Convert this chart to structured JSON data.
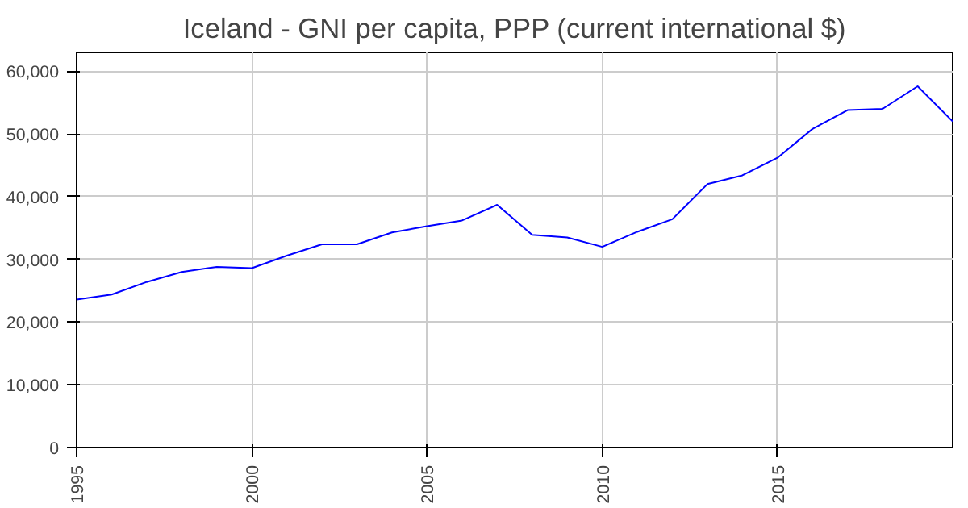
{
  "chart_data": {
    "type": "line",
    "title": "Iceland - GNI per capita, PPP (current international $)",
    "x": [
      1995,
      1996,
      1997,
      1998,
      1999,
      2000,
      2001,
      2002,
      2003,
      2004,
      2005,
      2006,
      2007,
      2008,
      2009,
      2010,
      2011,
      2012,
      2013,
      2014,
      2015,
      2016,
      2017,
      2018,
      2019,
      2020
    ],
    "series": [
      {
        "color": "#0000ff",
        "values": [
          23600,
          24400,
          26400,
          28000,
          28800,
          28600,
          30600,
          32400,
          32400,
          34300,
          35300,
          36200,
          38700,
          33900,
          33500,
          32000,
          34400,
          36400,
          42000,
          43400,
          46200,
          50800,
          53800,
          54000,
          57600,
          52000
        ]
      }
    ],
    "xlim": [
      1995,
      2020
    ],
    "xticks": [
      1995,
      2000,
      2005,
      2010,
      2015
    ],
    "ylim": [
      0,
      63000
    ],
    "yticks": [
      0,
      {
        "value": 10000,
        "label": "10,000"
      },
      {
        "value": 20000,
        "label": "20,000"
      },
      {
        "value": 30000,
        "label": "30,000"
      },
      {
        "value": 40000,
        "label": "40,000"
      },
      {
        "value": 50000,
        "label": "50,000"
      },
      {
        "value": 60000,
        "label": "60,000"
      }
    ],
    "grid": true,
    "marker": "none",
    "line_style": "solid"
  }
}
